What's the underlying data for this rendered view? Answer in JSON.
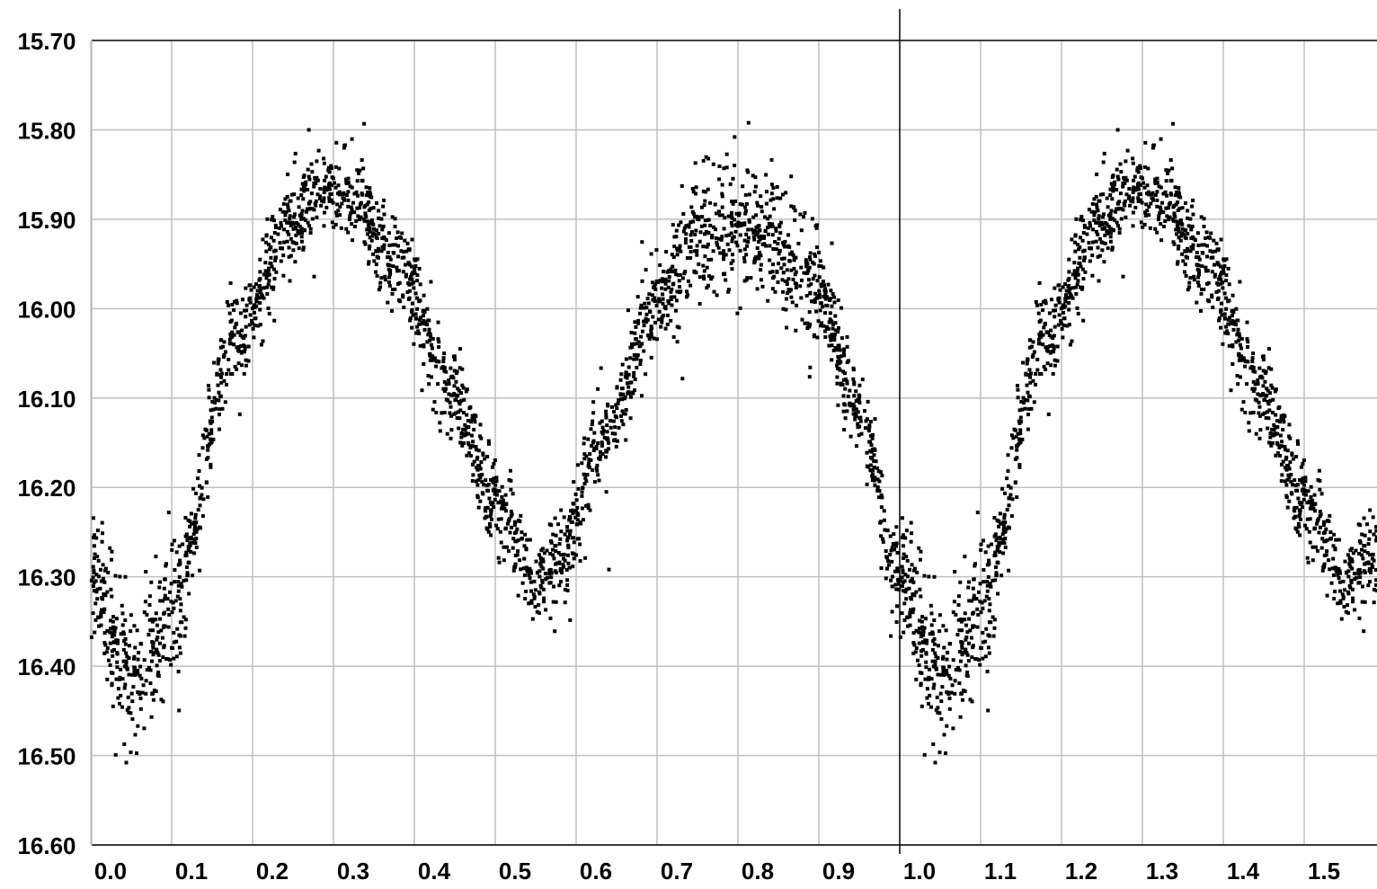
{
  "chart_data": {
    "type": "scatter",
    "title": "",
    "xlabel": "",
    "ylabel": "",
    "xlim": [
      -0.01,
      1.58
    ],
    "ylim": [
      15.7,
      16.6
    ],
    "y_inverted": true,
    "grid": true,
    "x_ticks": [
      "0.0",
      "0.1",
      "0.2",
      "0.3",
      "0.4",
      "0.5",
      "0.6",
      "0.7",
      "0.8",
      "0.9",
      "1.0",
      "1.1",
      "1.2",
      "1.3",
      "1.4",
      "1.5"
    ],
    "y_ticks": [
      "15.70",
      "15.80",
      "15.90",
      "16.00",
      "16.10",
      "16.20",
      "16.30",
      "16.40",
      "16.50",
      "16.60"
    ],
    "vertical_marker": 1.0,
    "marker_color": "#000000",
    "grid_color": "#c0c0c0",
    "profile": {
      "description_points_x": [
        0.0,
        0.05,
        0.1,
        0.18,
        0.25,
        0.29,
        0.32,
        0.38,
        0.45,
        0.5,
        0.55,
        0.58,
        0.63,
        0.7,
        0.75,
        0.8,
        0.84,
        0.9,
        0.95,
        1.0
      ],
      "description_points_y": [
        16.3,
        16.42,
        16.33,
        16.03,
        15.9,
        15.86,
        15.87,
        15.95,
        16.1,
        16.22,
        16.3,
        16.28,
        16.15,
        16.0,
        15.92,
        15.91,
        15.92,
        15.98,
        16.12,
        16.3
      ]
    },
    "series": [
      {
        "scatter_spread": 0.025,
        "point_count_per_cycle": 2600,
        "values": []
      }
    ]
  }
}
